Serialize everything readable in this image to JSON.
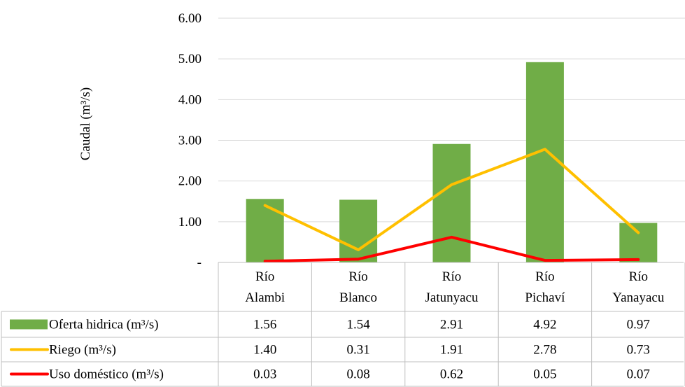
{
  "chart_data": {
    "type": "bar",
    "ylabel": "Caudal (m³/s)",
    "ylim": [
      0,
      6
    ],
    "y_ticks": [
      {
        "value": 0,
        "label": "-"
      },
      {
        "value": 1,
        "label": "1.00"
      },
      {
        "value": 2,
        "label": "2.00"
      },
      {
        "value": 3,
        "label": "3.00"
      },
      {
        "value": 4,
        "label": "4.00"
      },
      {
        "value": 5,
        "label": "5.00"
      },
      {
        "value": 6,
        "label": "6.00"
      }
    ],
    "grid": true,
    "legend": "data-table",
    "categories": [
      [
        "Río",
        "Alambi"
      ],
      [
        "Río",
        "Blanco"
      ],
      [
        "Río",
        "Jatunyacu"
      ],
      [
        "Río",
        "Pichaví"
      ],
      [
        "Río",
        "Yanayacu"
      ]
    ],
    "series": [
      {
        "name": "Oferta hidrica (m³/s)",
        "type": "bar",
        "color": "#70AD47",
        "values": [
          1.56,
          1.54,
          2.91,
          4.92,
          0.97
        ],
        "labels": [
          "1.56",
          "1.54",
          "2.91",
          "4.92",
          "0.97"
        ]
      },
      {
        "name": "Riego (m³/s)",
        "type": "line",
        "color": "#FFC000",
        "values": [
          1.4,
          0.31,
          1.91,
          2.78,
          0.73
        ],
        "labels": [
          "1.40",
          "0.31",
          "1.91",
          "2.78",
          "0.73"
        ]
      },
      {
        "name": "Uso doméstico (m³/s)",
        "type": "line",
        "color": "#FF0000",
        "values": [
          0.03,
          0.08,
          0.62,
          0.05,
          0.07
        ],
        "labels": [
          "0.03",
          "0.08",
          "0.62",
          "0.05",
          "0.07"
        ]
      }
    ]
  }
}
